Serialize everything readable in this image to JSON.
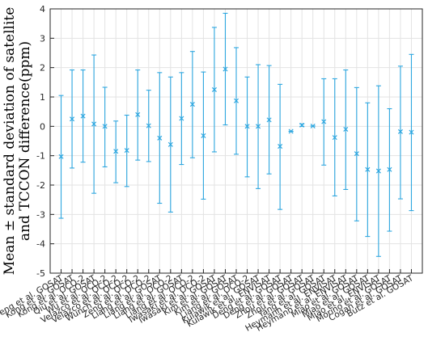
{
  "chart_data": {
    "type": "errorbar",
    "ylabel_lines": [
      "Mean ± standard deviation of satellite",
      "and TCCON difference(ppm)"
    ],
    "ylim": [
      -5,
      4
    ],
    "yticks": [
      -5,
      -4,
      -3,
      -2,
      -1,
      0,
      1,
      2,
      3,
      4
    ],
    "grid": true,
    "series_color": "#2ea7e0",
    "categories": [
      "Deng et al. GOSAT",
      "Kong et al. GOSAT",
      "Kong et al. OCO-2",
      "Qiu et al. GOSAT",
      "Wu et al. OCO-2",
      "Velazco et al. OCO-2",
      "Velazco et al. OCO-2",
      "Wunch et al. OCO-2",
      "Zeng et al. OCO-2",
      "Liang et al. GOSAT",
      "Liang et al. OCO-2",
      "Liang et al. GOSAT",
      "Liang et al. OCO-2",
      "Iwasaki et al. OCO-2",
      "Iwasaki et al. GOSAT",
      "Kim et al. GOSAT",
      "Kim et al. GOSAT",
      "Liang et al. OCO-2",
      "Kulawik et al. GOSAT",
      "Kulawik et al. ENVISAT",
      "Deng et al. GOSAT",
      "Deng et al. GOSAT",
      "Zhou et al. GOSAT",
      "Zhou et al. GOSAT",
      "Yang et al. GOSAT",
      "Heymann et al. ENVISAT",
      "Heymann et al. ENVISAT",
      "Miao et al. GOSAT",
      "Miao et al. GOSAT",
      "Miao et al. ENVISAT",
      "Morino et al. GOSAT",
      "Cogan et al. GOSAT",
      "Butz et al. GOSAT"
    ],
    "mean": [
      -1.03,
      0.25,
      0.35,
      0.08,
      0.0,
      -0.85,
      -0.82,
      0.4,
      0.02,
      -0.4,
      -0.62,
      0.27,
      0.75,
      -0.32,
      1.25,
      1.95,
      0.87,
      0.0,
      0.0,
      0.22,
      -0.68,
      -0.17,
      0.04,
      0.01,
      0.16,
      -0.38,
      -0.1,
      -0.93,
      -1.47,
      -1.52,
      -1.47,
      -0.18,
      -0.2
    ],
    "lower": [
      -3.13,
      -1.42,
      -1.22,
      -2.28,
      -1.38,
      -1.92,
      -2.05,
      -1.15,
      -1.2,
      -2.62,
      -2.92,
      -1.3,
      -1.07,
      -2.48,
      -0.87,
      0.05,
      -0.95,
      -1.72,
      -2.12,
      -1.62,
      -2.83,
      -0.17,
      0.0,
      0.01,
      -1.32,
      -2.37,
      -2.15,
      -3.22,
      -3.75,
      -4.43,
      -3.57,
      -2.47,
      -2.87
    ],
    "upper": [
      1.05,
      1.92,
      1.92,
      2.43,
      1.33,
      0.18,
      0.38,
      1.92,
      1.23,
      1.83,
      1.68,
      1.83,
      2.55,
      1.85,
      3.37,
      3.85,
      2.68,
      1.68,
      2.1,
      2.07,
      1.43,
      -0.17,
      0.08,
      0.01,
      1.62,
      1.62,
      1.92,
      1.32,
      0.8,
      1.38,
      0.6,
      2.05,
      2.45
    ]
  }
}
